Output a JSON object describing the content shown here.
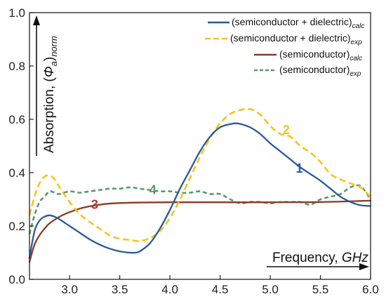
{
  "chart_data": {
    "type": "line",
    "xlim": [
      2.6,
      6.0
    ],
    "ylim": [
      0.0,
      1.0
    ],
    "x_ticks": [
      3.0,
      3.5,
      4.0,
      4.5,
      5.0,
      5.5,
      6.0
    ],
    "x_tick_labels": [
      "3.0",
      "3.5",
      "4.0",
      "4.5",
      "5.0",
      "5.5",
      "6.0"
    ],
    "y_ticks": [
      0.0,
      0.2,
      0.4,
      0.6,
      0.8,
      1.0
    ],
    "y_tick_labels": [
      "0.0",
      "0.2",
      "0.4",
      "0.6",
      "0.8",
      "1.0"
    ],
    "xlabel": {
      "main": "Frequency, ",
      "italic": "GHz"
    },
    "ylabel": {
      "main": "Absorption, (",
      "symbol": "Φ",
      "sub_a": "a",
      "close": ")",
      "sub": "norm"
    },
    "legend_position": "top-right",
    "grid": false,
    "series": [
      {
        "name": "(semiconductor + dielectric)",
        "name_sub": "calc",
        "curve_label": "1",
        "color": "#2a5a9a",
        "dash": "solid",
        "x": [
          2.6,
          2.65,
          2.7,
          2.75,
          2.8,
          2.85,
          2.9,
          3.0,
          3.1,
          3.2,
          3.3,
          3.4,
          3.5,
          3.6,
          3.65,
          3.7,
          3.8,
          3.9,
          4.0,
          4.1,
          4.2,
          4.3,
          4.4,
          4.5,
          4.6,
          4.65,
          4.7,
          4.8,
          4.9,
          5.0,
          5.1,
          5.2,
          5.3,
          5.4,
          5.5,
          5.6,
          5.7,
          5.8,
          5.9,
          6.0
        ],
        "y": [
          0.08,
          0.18,
          0.22,
          0.235,
          0.24,
          0.235,
          0.225,
          0.2,
          0.175,
          0.15,
          0.13,
          0.115,
          0.105,
          0.1,
          0.1,
          0.105,
          0.135,
          0.19,
          0.26,
          0.34,
          0.41,
          0.48,
          0.535,
          0.57,
          0.582,
          0.585,
          0.583,
          0.57,
          0.545,
          0.51,
          0.48,
          0.45,
          0.42,
          0.395,
          0.37,
          0.34,
          0.31,
          0.29,
          0.278,
          0.275
        ]
      },
      {
        "name": "(semiconductor + dielectric)",
        "name_sub": "exp",
        "curve_label": "2",
        "color": "#f5c518",
        "dash": "dashed",
        "x": [
          2.6,
          2.65,
          2.7,
          2.75,
          2.8,
          2.85,
          2.9,
          3.0,
          3.1,
          3.2,
          3.3,
          3.4,
          3.5,
          3.6,
          3.7,
          3.8,
          3.9,
          4.0,
          4.1,
          4.2,
          4.3,
          4.4,
          4.5,
          4.6,
          4.7,
          4.8,
          4.9,
          5.0,
          5.1,
          5.2,
          5.3,
          5.4,
          5.5,
          5.6,
          5.7,
          5.8,
          5.9,
          6.0
        ],
        "y": [
          0.24,
          0.31,
          0.36,
          0.385,
          0.39,
          0.375,
          0.345,
          0.29,
          0.245,
          0.215,
          0.19,
          0.165,
          0.152,
          0.148,
          0.143,
          0.155,
          0.18,
          0.23,
          0.3,
          0.38,
          0.46,
          0.53,
          0.585,
          0.62,
          0.635,
          0.638,
          0.618,
          0.575,
          0.545,
          0.535,
          0.5,
          0.475,
          0.44,
          0.395,
          0.375,
          0.36,
          0.345,
          0.31
        ]
      },
      {
        "name": "(semiconductor)",
        "name_sub": "calc",
        "curve_label": "3",
        "color": "#8b3a2a",
        "dash": "solid",
        "x": [
          2.6,
          2.65,
          2.7,
          2.75,
          2.8,
          2.9,
          3.0,
          3.1,
          3.2,
          3.3,
          3.4,
          3.5,
          3.7,
          4.0,
          4.5,
          5.0,
          5.5,
          6.0
        ],
        "y": [
          0.065,
          0.13,
          0.165,
          0.19,
          0.21,
          0.235,
          0.252,
          0.265,
          0.274,
          0.28,
          0.284,
          0.286,
          0.288,
          0.289,
          0.289,
          0.289,
          0.29,
          0.295
        ]
      },
      {
        "name": "(semiconductor)",
        "name_sub": "exp",
        "curve_label": "4",
        "color": "#5a9a6a",
        "dash": "dashed",
        "x": [
          2.6,
          2.65,
          2.7,
          2.75,
          2.8,
          2.85,
          2.9,
          3.0,
          3.1,
          3.2,
          3.3,
          3.4,
          3.5,
          3.6,
          3.7,
          3.8,
          3.9,
          4.0,
          4.1,
          4.2,
          4.3,
          4.4,
          4.5,
          4.6,
          4.7,
          4.8,
          4.9,
          5.0,
          5.1,
          5.2,
          5.3,
          5.4,
          5.5,
          5.6,
          5.7,
          5.8,
          5.9,
          6.0
        ],
        "y": [
          0.17,
          0.24,
          0.29,
          0.31,
          0.33,
          0.325,
          0.32,
          0.33,
          0.325,
          0.33,
          0.335,
          0.34,
          0.34,
          0.345,
          0.34,
          0.335,
          0.33,
          0.33,
          0.325,
          0.325,
          0.33,
          0.32,
          0.32,
          0.3,
          0.285,
          0.29,
          0.29,
          0.285,
          0.29,
          0.29,
          0.29,
          0.28,
          0.3,
          0.31,
          0.32,
          0.345,
          0.35,
          0.3
        ]
      }
    ]
  }
}
